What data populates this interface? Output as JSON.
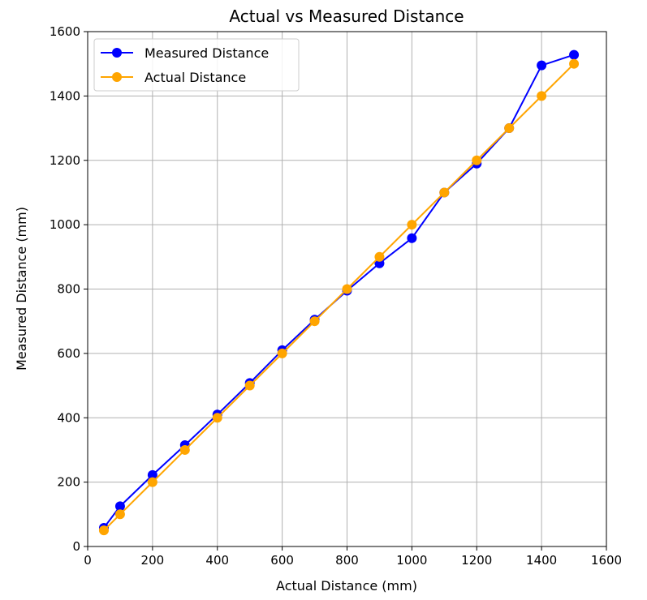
{
  "chart_data": {
    "type": "line",
    "title": "Actual vs Measured Distance",
    "xlabel": "Actual Distance (mm)",
    "ylabel": "Measured Distance (mm)",
    "xlim": [
      0,
      1600
    ],
    "ylim": [
      0,
      1600
    ],
    "xticks": [
      0,
      200,
      400,
      600,
      800,
      1000,
      1200,
      1400,
      1600
    ],
    "yticks": [
      0,
      200,
      400,
      600,
      800,
      1000,
      1200,
      1400,
      1600
    ],
    "grid": true,
    "legend_position": "top-left",
    "x": [
      50,
      100,
      200,
      300,
      400,
      500,
      600,
      700,
      800,
      900,
      1000,
      1100,
      1200,
      1300,
      1400,
      1500
    ],
    "series": [
      {
        "name": "Measured Distance",
        "color": "#0000ff",
        "marker": "circle",
        "values": [
          58,
          125,
          222,
          315,
          410,
          508,
          610,
          705,
          795,
          880,
          958,
          1100,
          1190,
          1300,
          1495,
          1528
        ]
      },
      {
        "name": "Actual Distance",
        "color": "#ffa500",
        "marker": "circle",
        "values": [
          50,
          100,
          200,
          300,
          400,
          500,
          600,
          700,
          800,
          900,
          1000,
          1100,
          1200,
          1300,
          1400,
          1500
        ]
      }
    ]
  }
}
